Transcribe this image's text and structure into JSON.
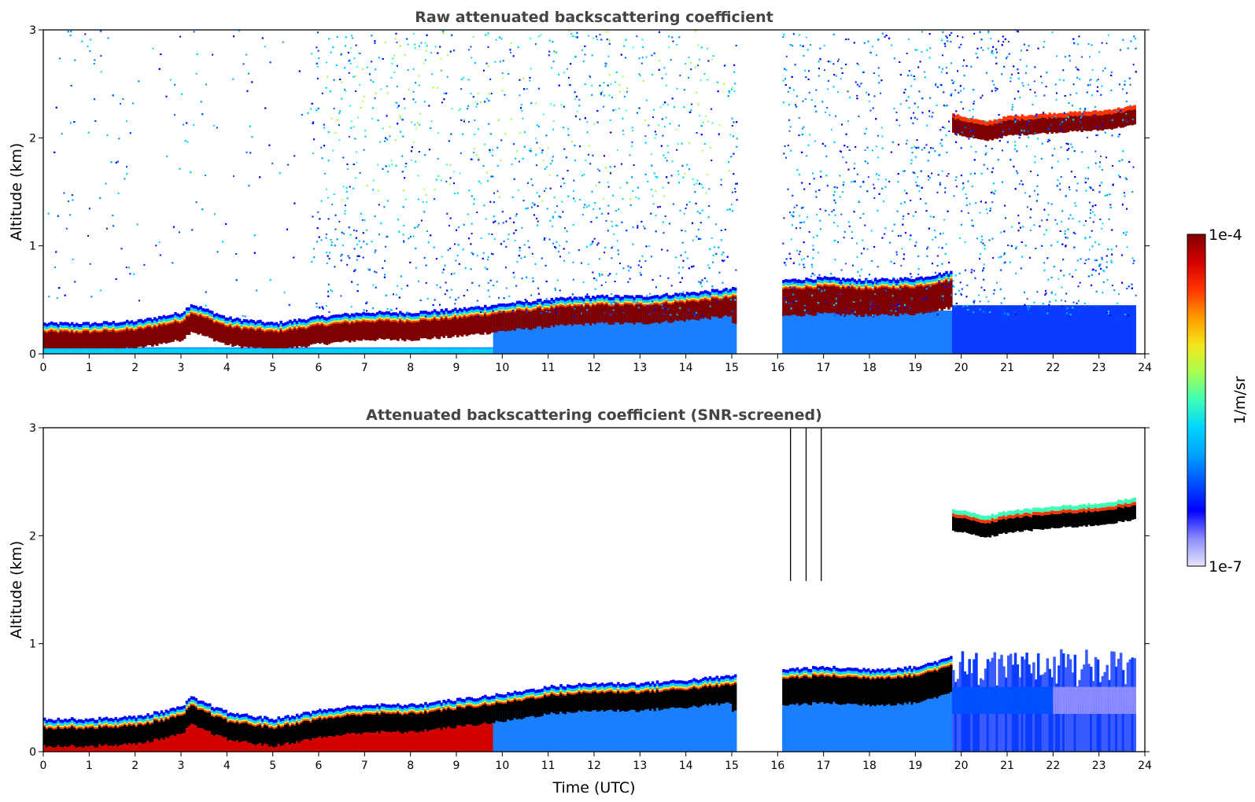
{
  "chart_data": [
    {
      "type": "heatmap",
      "title": "Raw attenuated backscattering coefficient",
      "xlabel": "",
      "ylabel": "Altitude (km)",
      "xlim": [
        0,
        24
      ],
      "ylim": [
        0,
        3
      ],
      "xticks": [
        "0",
        "1",
        "2",
        "3",
        "4",
        "5",
        "6",
        "7",
        "8",
        "9",
        "10",
        "11",
        "12",
        "13",
        "14",
        "15",
        "16",
        "17",
        "18",
        "19",
        "20",
        "21",
        "22",
        "23",
        "24"
      ],
      "yticks": [
        "0",
        "1",
        "2",
        "3"
      ],
      "data_gaps_utc": [
        [
          15.1,
          16.1
        ]
      ],
      "layer_top_km": {
        "time_utc": [
          0,
          1,
          2,
          3,
          3.2,
          4,
          5,
          6,
          7,
          8,
          9,
          10,
          11,
          12,
          13,
          14,
          15,
          16.1,
          17,
          18,
          19,
          19.8
        ],
        "altitude_km": [
          0.2,
          0.2,
          0.22,
          0.3,
          0.38,
          0.25,
          0.2,
          0.26,
          0.3,
          0.3,
          0.33,
          0.38,
          0.42,
          0.45,
          0.45,
          0.48,
          0.52,
          0.6,
          0.62,
          0.6,
          0.62,
          0.68
        ]
      },
      "elevated_layer": {
        "time_utc": [
          19.8,
          20.5,
          21,
          22,
          23,
          23.8
        ],
        "altitude_km": [
          2.12,
          2.05,
          2.1,
          2.13,
          2.15,
          2.2
        ]
      },
      "colorbar": {
        "label": "1/m/sr",
        "min_label": "1e-7",
        "max_label": "1e-4",
        "scale": "log"
      }
    },
    {
      "type": "heatmap",
      "title": "Attenuated backscattering coefficient (SNR-screened)",
      "xlabel": "Time (UTC)",
      "ylabel": "Altitude (km)",
      "xlim": [
        0,
        24
      ],
      "ylim": [
        0,
        3
      ],
      "xticks": [
        "0",
        "1",
        "2",
        "3",
        "4",
        "5",
        "6",
        "7",
        "8",
        "9",
        "10",
        "11",
        "12",
        "13",
        "14",
        "15",
        "16",
        "17",
        "18",
        "19",
        "20",
        "21",
        "22",
        "23",
        "24"
      ],
      "yticks": [
        "0",
        "1",
        "2",
        "3"
      ],
      "data_gaps_utc": [
        [
          15.1,
          16.1
        ]
      ],
      "layer_top_km": {
        "time_utc": [
          0,
          1,
          2,
          3,
          3.2,
          4,
          5,
          6,
          7,
          8,
          9,
          10,
          11,
          12,
          13,
          14,
          15,
          16.1,
          17,
          18,
          19,
          19.8
        ],
        "altitude_km": [
          0.22,
          0.22,
          0.24,
          0.33,
          0.42,
          0.28,
          0.22,
          0.3,
          0.35,
          0.35,
          0.4,
          0.45,
          0.52,
          0.55,
          0.55,
          0.58,
          0.62,
          0.68,
          0.7,
          0.68,
          0.7,
          0.8
        ]
      },
      "elevated_layer": {
        "time_utc": [
          19.8,
          20.5,
          21,
          22,
          23,
          23.8
        ],
        "altitude_km": [
          2.15,
          2.08,
          2.13,
          2.17,
          2.2,
          2.25
        ]
      },
      "colorbar": {
        "label": "1/m/sr",
        "min_label": "1e-7",
        "max_label": "1e-4",
        "scale": "log"
      }
    }
  ],
  "colormap": [
    "#7f0000",
    "#d40000",
    "#ff3500",
    "#ff9a00",
    "#f5e51a",
    "#a6ff52",
    "#3dffba",
    "#00d4ff",
    "#00a0ff",
    "#0050ff",
    "#0000ff",
    "#8c8cff",
    "#e6e6fa"
  ]
}
